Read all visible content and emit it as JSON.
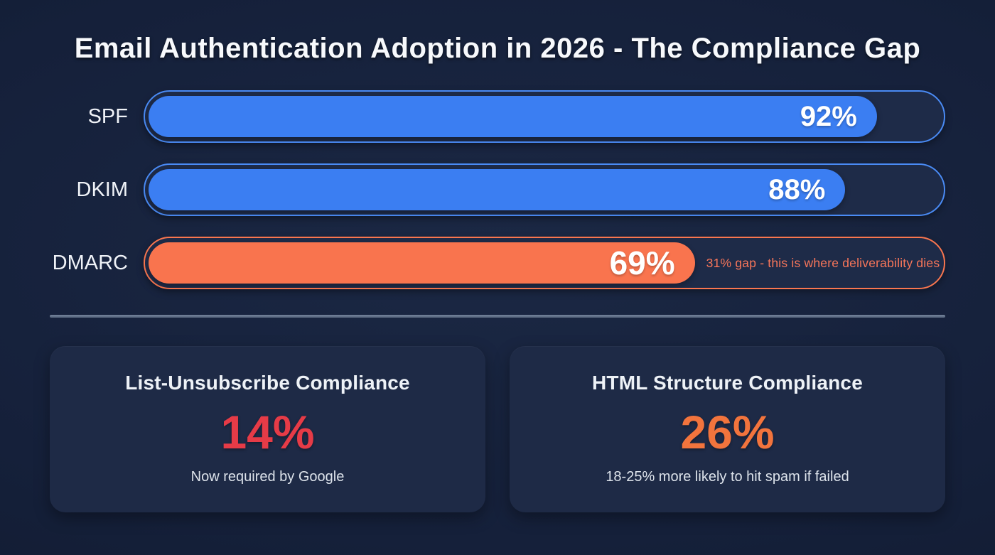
{
  "title": "Email Authentication Adoption in 2026 - The Compliance Gap",
  "chart_data": {
    "type": "bar",
    "orientation": "horizontal",
    "title": "Email Authentication Adoption in 2026 - The Compliance Gap",
    "categories": [
      "SPF",
      "DKIM",
      "DMARC"
    ],
    "values": [
      92,
      88,
      69
    ],
    "value_labels": [
      "92%",
      "88%",
      "69%"
    ],
    "xlim": [
      0,
      100
    ],
    "grid": false,
    "legend": false,
    "bar_colors": [
      "#3b7ef2",
      "#3b7ef2",
      "#f9744e"
    ],
    "annotations": [
      {
        "category": "DMARC",
        "text": "31% gap - this is where deliverability dies",
        "color": "#f8765a"
      }
    ],
    "secondary_stats": [
      {
        "title": "List-Unsubscribe Compliance",
        "value": 14,
        "value_label": "14%",
        "note": "Now required by Google",
        "color": "#e63b47"
      },
      {
        "title": "HTML Structure Compliance",
        "value": 26,
        "value_label": "26%",
        "note": "18-25% more likely to hit spam if failed",
        "color": "#f2743d"
      }
    ]
  },
  "bars": [
    {
      "label": "SPF",
      "value": 92,
      "value_label": "92%",
      "color": "#3b7ef2",
      "annotation": ""
    },
    {
      "label": "DKIM",
      "value": 88,
      "value_label": "88%",
      "color": "#3b7ef2",
      "annotation": ""
    },
    {
      "label": "DMARC",
      "value": 69,
      "value_label": "69%",
      "color": "#f9744e",
      "annotation": "31% gap - this is where deliverability dies"
    }
  ],
  "cards": [
    {
      "title": "List-Unsubscribe Compliance",
      "value_label": "14%",
      "value_color": "#e63b47",
      "subtitle": "Now required by Google"
    },
    {
      "title": "HTML Structure Compliance",
      "value_label": "26%",
      "value_color": "#f2743d",
      "subtitle": "18-25% more likely to hit spam if failed"
    }
  ],
  "colors": {
    "background": "#15203a",
    "track": "#1e2b48",
    "blue_accent": "#3b7ef2",
    "orange_accent": "#f9744e",
    "red_accent": "#e63b47",
    "divider": "#64748b",
    "text": "#f7f9fc"
  }
}
